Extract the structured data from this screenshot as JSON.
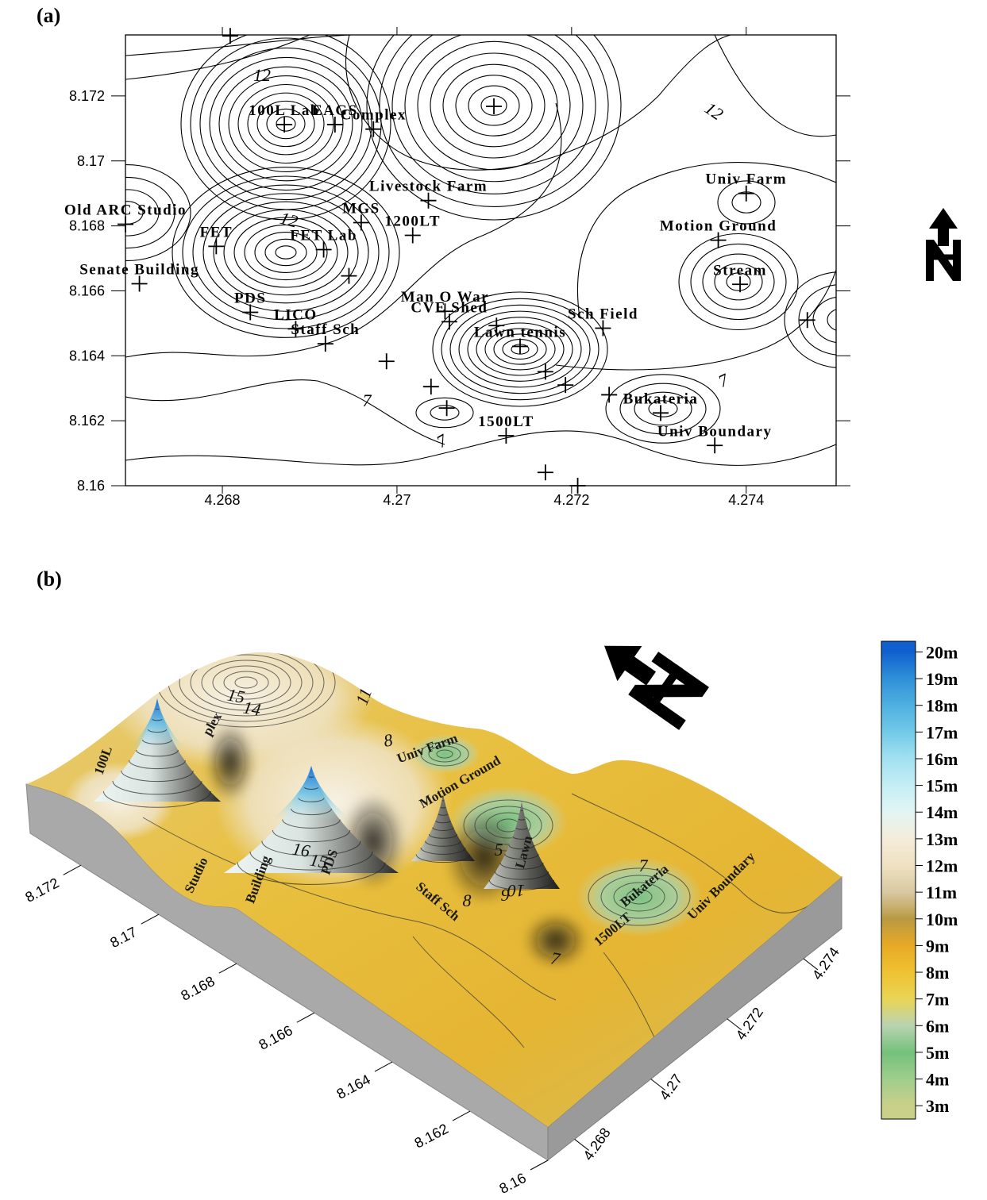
{
  "chart_data": [
    {
      "type": "contour",
      "panel_label": "(a)",
      "xlim": [
        4.26689,
        4.27503
      ],
      "ylim": [
        8.16,
        8.17388
      ],
      "xticks": [
        4.268,
        4.27,
        4.272,
        4.274
      ],
      "yticks": [
        8.16,
        8.162,
        8.164,
        8.166,
        8.168,
        8.17,
        8.172
      ],
      "x": [
        4.26809,
        4.26871,
        4.26929,
        4.26973,
        4.27111,
        4.27036,
        4.274,
        4.26689,
        4.26959,
        4.27018,
        4.27368,
        4.26793,
        4.26916,
        4.26945,
        4.26705,
        4.27393,
        4.26832,
        4.27055,
        4.2706,
        4.26884,
        4.27114,
        4.27236,
        4.26918,
        4.27141,
        4.26988,
        4.2717,
        4.27039,
        4.27193,
        4.27243,
        4.27302,
        4.27057,
        4.27125,
        4.27364,
        4.2717,
        4.27207,
        4.2747
      ],
      "y": [
        8.17385,
        8.17112,
        8.17112,
        8.17098,
        8.17168,
        8.16878,
        8.169,
        8.16805,
        8.1681,
        8.16771,
        8.16756,
        8.16737,
        8.16727,
        8.16646,
        8.16622,
        8.1662,
        8.16534,
        8.16537,
        8.16505,
        8.16483,
        8.16493,
        8.16485,
        8.16437,
        8.16429,
        8.16383,
        8.16351,
        8.16305,
        8.1631,
        8.1628,
        8.16224,
        8.16239,
        8.16154,
        8.16124,
        8.16041,
        8.16,
        8.1651
      ],
      "labels": [
        null,
        "100L Lab",
        "EAGS",
        "Complex",
        null,
        "Livestock Farm",
        "Univ Farm",
        "Old ARC Studio",
        "MGS",
        "1200LT",
        "Motion Ground",
        "FET",
        "FET Lab",
        null,
        "Senate Building",
        "Stream",
        "PDS",
        "Man O War",
        "CVE Shed",
        "LICO",
        null,
        "Sch Field",
        "Staff Sch",
        "Lawn tennis",
        null,
        null,
        null,
        null,
        null,
        "Bukateria",
        null,
        "1500LT",
        "Univ Boundary",
        null,
        null,
        null
      ],
      "contour_labels": [
        12,
        12,
        12,
        7,
        7,
        7
      ],
      "color": "#000000"
    },
    {
      "type": "surface",
      "panel_label": "(b)",
      "xlim": [
        4.2673,
        4.275
      ],
      "ylim": [
        8.16,
        8.1733
      ],
      "xticks": [
        4.268,
        4.27,
        4.272,
        4.274
      ],
      "yticks": [
        8.172,
        8.17,
        8.168,
        8.166,
        8.164,
        8.162,
        8.16
      ],
      "zlim": [
        2.5,
        20.4
      ],
      "zticks": [
        {
          "value": 3,
          "label": "3m"
        },
        {
          "value": 4,
          "label": "4m"
        },
        {
          "value": 5,
          "label": "5m"
        },
        {
          "value": 6,
          "label": "6m"
        },
        {
          "value": 7,
          "label": "7m"
        },
        {
          "value": 8,
          "label": "8m"
        },
        {
          "value": 9,
          "label": "9m"
        },
        {
          "value": 10,
          "label": "10m"
        },
        {
          "value": 11,
          "label": "11m"
        },
        {
          "value": 12,
          "label": "12m"
        },
        {
          "value": 13,
          "label": "13m"
        },
        {
          "value": 14,
          "label": "14m"
        },
        {
          "value": 15,
          "label": "15m"
        },
        {
          "value": 16,
          "label": "16m"
        },
        {
          "value": 17,
          "label": "17m"
        },
        {
          "value": 18,
          "label": "18m"
        },
        {
          "value": 19,
          "label": "19m"
        },
        {
          "value": 20,
          "label": "20m"
        }
      ],
      "colors": [
        "#c9d08a",
        "#9fce8c",
        "#74c17c",
        "#b9d3b2",
        "#e9d455",
        "#f0c232",
        "#e7a925",
        "#b89a42",
        "#d9c9a2",
        "#efe1c2",
        "#f4ecda",
        "#e2f5f4",
        "#c4eef5",
        "#a2e1f1",
        "#72c9e9",
        "#4fb0e1",
        "#2f90d8",
        "#1060d0"
      ],
      "surface_labels": [
        "100L",
        "plex",
        "Studio",
        "Building",
        "PDS",
        "Staff Sch",
        "Lawn",
        "Bukateria",
        "Univ Boundary",
        "Univ Farm",
        "Motion Ground",
        "1500LT"
      ],
      "contour_labels": [
        15,
        14,
        16,
        15,
        8,
        11,
        9,
        10,
        8,
        7,
        7,
        5
      ]
    }
  ]
}
